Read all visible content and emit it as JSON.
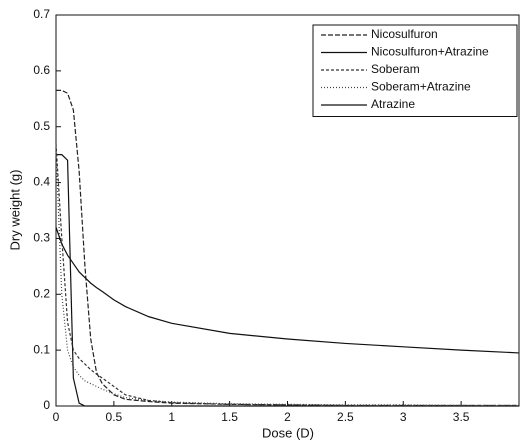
{
  "chart_data": {
    "type": "line",
    "x_label": "Dose (D)",
    "y_label": "Dry weight (g)",
    "x": [
      0,
      0.05,
      0.1,
      0.15,
      0.2,
      0.25,
      0.3,
      0.35,
      0.4,
      0.5,
      0.6,
      0.8,
      1,
      1.5,
      2,
      2.5,
      3,
      3.5,
      4
    ],
    "series": [
      {
        "name": "Nicosulfuron",
        "color": "#222222",
        "dash": "5 2",
        "values": [
          0.565,
          0.565,
          0.56,
          0.53,
          0.42,
          0.25,
          0.12,
          0.06,
          0.04,
          0.02,
          0.012,
          0.008,
          0.005,
          0.003,
          0.002,
          0.001,
          0.001,
          0.001,
          0.001
        ]
      },
      {
        "name": "Nicosulfuron+Atrazine",
        "color": "#111111",
        "dash": "none",
        "values": [
          0.45,
          0.45,
          0.44,
          0.05,
          0.005,
          0,
          0,
          0,
          0,
          0,
          0,
          0,
          0,
          0,
          0,
          0,
          0,
          0,
          0
        ]
      },
      {
        "name": "Soberam",
        "color": "#333333",
        "dash": "3 2",
        "values": [
          0.47,
          0.3,
          0.15,
          0.1,
          0.085,
          0.075,
          0.065,
          0.057,
          0.05,
          0.035,
          0.02,
          0.01,
          0.006,
          0.003,
          0.002,
          0.001,
          0.001,
          0.001,
          0.001
        ]
      },
      {
        "name": "Soberam+Atrazine",
        "color": "#444444",
        "dash": "1 2",
        "values": [
          0.46,
          0.2,
          0.1,
          0.07,
          0.055,
          0.045,
          0.04,
          0.035,
          0.03,
          0.022,
          0.015,
          0.01,
          0.007,
          0.004,
          0.003,
          0.002,
          0.002,
          0.001,
          0.001
        ]
      },
      {
        "name": "Atrazine",
        "color": "#111111",
        "dash": "none",
        "values": [
          0.32,
          0.29,
          0.27,
          0.255,
          0.24,
          0.23,
          0.22,
          0.212,
          0.205,
          0.19,
          0.178,
          0.16,
          0.148,
          0.13,
          0.12,
          0.112,
          0.106,
          0.1,
          0.095
        ]
      }
    ],
    "xlim": [
      0,
      4
    ],
    "xticks": [
      0,
      0.5,
      1,
      1.5,
      2,
      2.5,
      3,
      3.5
    ],
    "ylim": [
      0,
      0.7
    ],
    "yticks": [
      0,
      0.1,
      0.2,
      0.3,
      0.4,
      0.5,
      0.6,
      0.7
    ],
    "legend": "top-right"
  }
}
